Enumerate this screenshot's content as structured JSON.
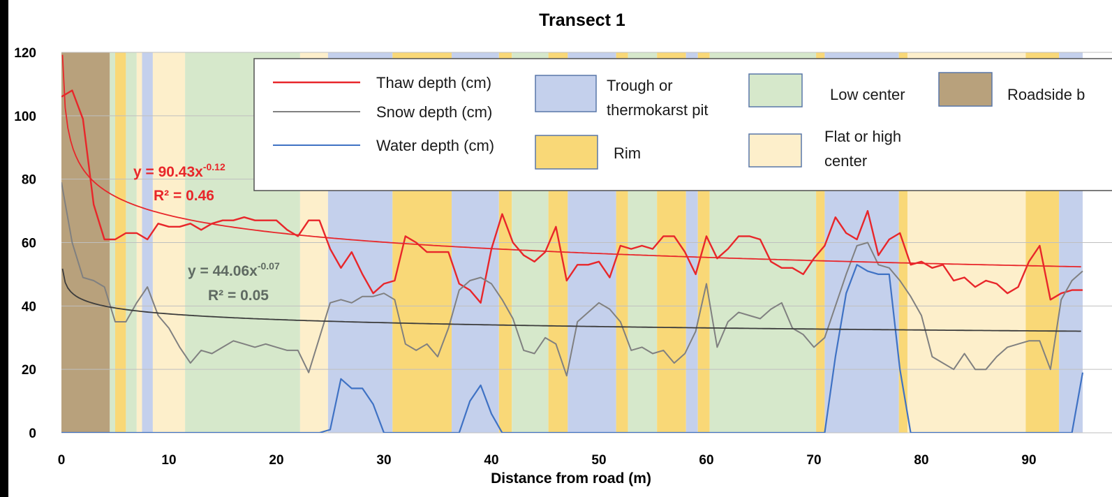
{
  "chart_data": {
    "type": "line",
    "title": "Transect 1",
    "xlabel": "Distance from road (m)",
    "ylabel": "",
    "xlim": [
      0,
      95
    ],
    "ylim": [
      0,
      120
    ],
    "xticks": [
      0,
      10,
      20,
      30,
      40,
      50,
      60,
      70,
      80,
      90
    ],
    "yticks": [
      0,
      20,
      40,
      60,
      80,
      100,
      120
    ],
    "grid": "horizontal",
    "legend": "top, inside plot",
    "colors": {
      "thaw": "#e8262a",
      "snow": "#808080",
      "water": "#3f72c4",
      "trend_thaw": "#e8262a",
      "trend_snow": "#3c3c3c",
      "trough": "#c4d0ec",
      "rim": "#f9d877",
      "low_center": "#d6e8cb",
      "flat_high": "#fdefcb",
      "roadside": "#b8a17c"
    },
    "background_zones": [
      {
        "type": "roadside",
        "start": 0,
        "end": 4.5
      },
      {
        "type": "low_center",
        "start": 4.5,
        "end": 5
      },
      {
        "type": "rim",
        "start": 5,
        "end": 6
      },
      {
        "type": "low_center",
        "start": 6,
        "end": 7
      },
      {
        "type": "flat_high",
        "start": 7,
        "end": 7.5
      },
      {
        "type": "trough",
        "start": 7.5,
        "end": 8.5
      },
      {
        "type": "flat_high",
        "start": 8.5,
        "end": 11.5
      },
      {
        "type": "low_center",
        "start": 11.5,
        "end": 22.2
      },
      {
        "type": "flat_high",
        "start": 22.2,
        "end": 24.8
      },
      {
        "type": "trough",
        "start": 24.8,
        "end": 30.8
      },
      {
        "type": "rim",
        "start": 30.8,
        "end": 36.3
      },
      {
        "type": "trough",
        "start": 36.3,
        "end": 40.7
      },
      {
        "type": "rim",
        "start": 40.7,
        "end": 41.9
      },
      {
        "type": "low_center",
        "start": 41.9,
        "end": 45.3
      },
      {
        "type": "rim",
        "start": 45.3,
        "end": 47.1
      },
      {
        "type": "trough",
        "start": 47.1,
        "end": 51.6
      },
      {
        "type": "rim",
        "start": 51.6,
        "end": 52.7
      },
      {
        "type": "low_center",
        "start": 52.7,
        "end": 55.4
      },
      {
        "type": "rim",
        "start": 55.4,
        "end": 58.1
      },
      {
        "type": "trough",
        "start": 58.1,
        "end": 59.2
      },
      {
        "type": "rim",
        "start": 59.2,
        "end": 60.3
      },
      {
        "type": "low_center",
        "start": 60.3,
        "end": 70.2
      },
      {
        "type": "rim",
        "start": 70.2,
        "end": 71.0
      },
      {
        "type": "trough",
        "start": 71.0,
        "end": 77.9
      },
      {
        "type": "rim",
        "start": 77.9,
        "end": 78.7
      },
      {
        "type": "flat_high",
        "start": 78.7,
        "end": 89.7
      },
      {
        "type": "rim",
        "start": 89.7,
        "end": 92.8
      },
      {
        "type": "trough",
        "start": 92.8,
        "end": 95
      }
    ],
    "series": [
      {
        "name": "Thaw depth (cm)",
        "key": "thaw",
        "x": [
          0,
          1,
          2,
          3,
          4,
          5,
          6,
          7,
          8,
          9,
          10,
          11,
          12,
          13,
          14,
          15,
          16,
          17,
          18,
          19,
          20,
          21,
          22,
          23,
          24,
          25,
          26,
          27,
          28,
          29,
          30,
          31,
          32,
          33,
          34,
          35,
          36,
          37,
          38,
          39,
          40,
          41,
          42,
          43,
          44,
          45,
          46,
          47,
          48,
          49,
          50,
          51,
          52,
          53,
          54,
          55,
          56,
          57,
          58,
          59,
          60,
          61,
          62,
          63,
          64,
          65,
          66,
          67,
          68,
          69,
          70,
          71,
          72,
          73,
          74,
          75,
          76,
          77,
          78,
          79,
          80,
          81,
          82,
          83,
          84,
          85,
          86,
          87,
          88,
          89,
          90,
          91,
          92,
          93,
          94,
          95
        ],
        "values": [
          106,
          108,
          99,
          72,
          61,
          61,
          63,
          63,
          61,
          66,
          65,
          65,
          66,
          64,
          66,
          67,
          67,
          68,
          67,
          67,
          67,
          64,
          62,
          67,
          67,
          58,
          52,
          57,
          50,
          44,
          47,
          48,
          62,
          60,
          57,
          57,
          57,
          47,
          45,
          41,
          58,
          69,
          60,
          56,
          54,
          57,
          65,
          48,
          53,
          53,
          54,
          49,
          59,
          58,
          59,
          58,
          62,
          62,
          57,
          50,
          62,
          55,
          58,
          62,
          62,
          61,
          54,
          52,
          52,
          50,
          55,
          59,
          68,
          63,
          61,
          70,
          56,
          61,
          63,
          53,
          54,
          52,
          53,
          48,
          49,
          46,
          48,
          47,
          44,
          46,
          54,
          59,
          42,
          44,
          45,
          45
        ]
      },
      {
        "name": "Snow depth (cm)",
        "key": "snow",
        "x": [
          0,
          1,
          2,
          3,
          4,
          5,
          6,
          7,
          8,
          9,
          10,
          11,
          12,
          13,
          14,
          15,
          16,
          17,
          18,
          19,
          20,
          21,
          22,
          23,
          24,
          25,
          26,
          27,
          28,
          29,
          30,
          31,
          32,
          33,
          34,
          35,
          36,
          37,
          38,
          39,
          40,
          41,
          42,
          43,
          44,
          45,
          46,
          47,
          48,
          49,
          50,
          51,
          52,
          53,
          54,
          55,
          56,
          57,
          58,
          59,
          60,
          61,
          62,
          63,
          64,
          65,
          66,
          67,
          68,
          69,
          70,
          71,
          72,
          73,
          74,
          75,
          76,
          77,
          78,
          79,
          80,
          81,
          82,
          83,
          84,
          85,
          86,
          87,
          88,
          89,
          90,
          91,
          92,
          93,
          94,
          95
        ],
        "values": [
          79,
          60,
          49,
          48,
          46,
          35,
          35,
          41,
          46,
          37,
          33,
          27,
          22,
          26,
          25,
          27,
          29,
          28,
          27,
          28,
          27,
          26,
          26,
          19,
          30,
          41,
          42,
          41,
          43,
          43,
          44,
          42,
          28,
          26,
          28,
          24,
          33,
          45,
          48,
          49,
          47,
          42,
          36,
          26,
          25,
          30,
          28,
          18,
          35,
          38,
          41,
          39,
          35,
          26,
          27,
          25,
          26,
          22,
          25,
          32,
          47,
          27,
          35,
          38,
          37,
          36,
          39,
          41,
          33,
          31,
          27,
          30,
          40,
          50,
          59,
          60,
          53,
          52,
          48,
          43,
          37,
          24,
          22,
          20,
          25,
          20,
          20,
          24,
          27,
          28,
          29,
          29,
          20,
          42,
          48,
          51
        ]
      },
      {
        "name": "Water depth (cm)",
        "key": "water",
        "x": [
          0,
          1,
          2,
          3,
          4,
          5,
          6,
          7,
          8,
          9,
          10,
          11,
          12,
          13,
          14,
          15,
          16,
          17,
          18,
          19,
          20,
          21,
          22,
          23,
          24,
          25,
          26,
          27,
          28,
          29,
          30,
          31,
          32,
          33,
          34,
          35,
          36,
          37,
          38,
          39,
          40,
          41,
          42,
          43,
          44,
          45,
          46,
          47,
          48,
          49,
          50,
          51,
          52,
          53,
          54,
          55,
          56,
          57,
          58,
          59,
          60,
          61,
          62,
          63,
          64,
          65,
          66,
          67,
          68,
          69,
          70,
          71,
          72,
          73,
          74,
          75,
          76,
          77,
          78,
          79,
          80,
          81,
          82,
          83,
          84,
          85,
          86,
          87,
          88,
          89,
          90,
          91,
          92,
          93,
          94,
          95
        ],
        "values": [
          0,
          0,
          0,
          0,
          0,
          0,
          0,
          0,
          0,
          0,
          0,
          0,
          0,
          0,
          0,
          0,
          0,
          0,
          0,
          0,
          0,
          0,
          0,
          0,
          0,
          1,
          17,
          14,
          14,
          9,
          0,
          0,
          0,
          0,
          0,
          0,
          0,
          0,
          10,
          15,
          6,
          0,
          0,
          0,
          0,
          0,
          0,
          0,
          0,
          0,
          0,
          0,
          0,
          0,
          0,
          0,
          0,
          0,
          0,
          0,
          0,
          0,
          0,
          0,
          0,
          0,
          0,
          0,
          0,
          0,
          0,
          0,
          24,
          44,
          53,
          51,
          50,
          50,
          20,
          0,
          0,
          0,
          0,
          0,
          0,
          0,
          0,
          0,
          0,
          0,
          0,
          0,
          0,
          0,
          0,
          19
        ]
      }
    ],
    "trendlines": [
      {
        "key": "trend_thaw",
        "a": 90.43,
        "b": -0.12,
        "equation": "y = 90.43x",
        "exponent": "-0.12",
        "r2": "R² = 0.46"
      },
      {
        "key": "trend_snow",
        "a": 44.06,
        "b": -0.07,
        "equation": "y = 44.06x",
        "exponent": "-0.07",
        "r2": "R² = 0.05"
      }
    ],
    "legend_entries": {
      "thaw": "Thaw depth (cm)",
      "snow": "Snow depth (cm)",
      "water": "Water depth (cm)",
      "trough_l1": "Trough or",
      "trough_l2": "thermokarst pit",
      "rim": "Rim",
      "low_center": "Low center",
      "flat_high_l1": "Flat or high",
      "flat_high_l2": "center",
      "roadside": "Roadside b"
    }
  }
}
